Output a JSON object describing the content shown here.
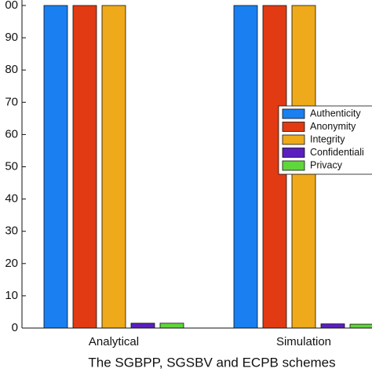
{
  "chart_data": {
    "type": "bar",
    "xlabel": "The SGBPP, SGSBV and ECPB schemes",
    "categories": [
      "Analytical",
      "Simulation"
    ],
    "series": [
      {
        "name": "Authenticity",
        "color": "#1a7ff0",
        "values": [
          100,
          100
        ]
      },
      {
        "name": "Anonymity",
        "color": "#e23a12",
        "values": [
          100,
          100
        ]
      },
      {
        "name": "Integrity",
        "color": "#eeaa1a",
        "values": [
          100,
          100
        ]
      },
      {
        "name": "Confidentiali",
        "color": "#5a1fbf",
        "values": [
          1.5,
          1.3
        ]
      },
      {
        "name": "Privacy",
        "color": "#5fd63a",
        "values": [
          1.5,
          1.2
        ]
      }
    ],
    "ylim": [
      0,
      100
    ],
    "yticks": [
      0,
      10,
      20,
      30,
      40,
      50,
      60,
      70,
      80,
      90,
      {
        "value": 100,
        "label": "00"
      }
    ],
    "legend": "right"
  }
}
